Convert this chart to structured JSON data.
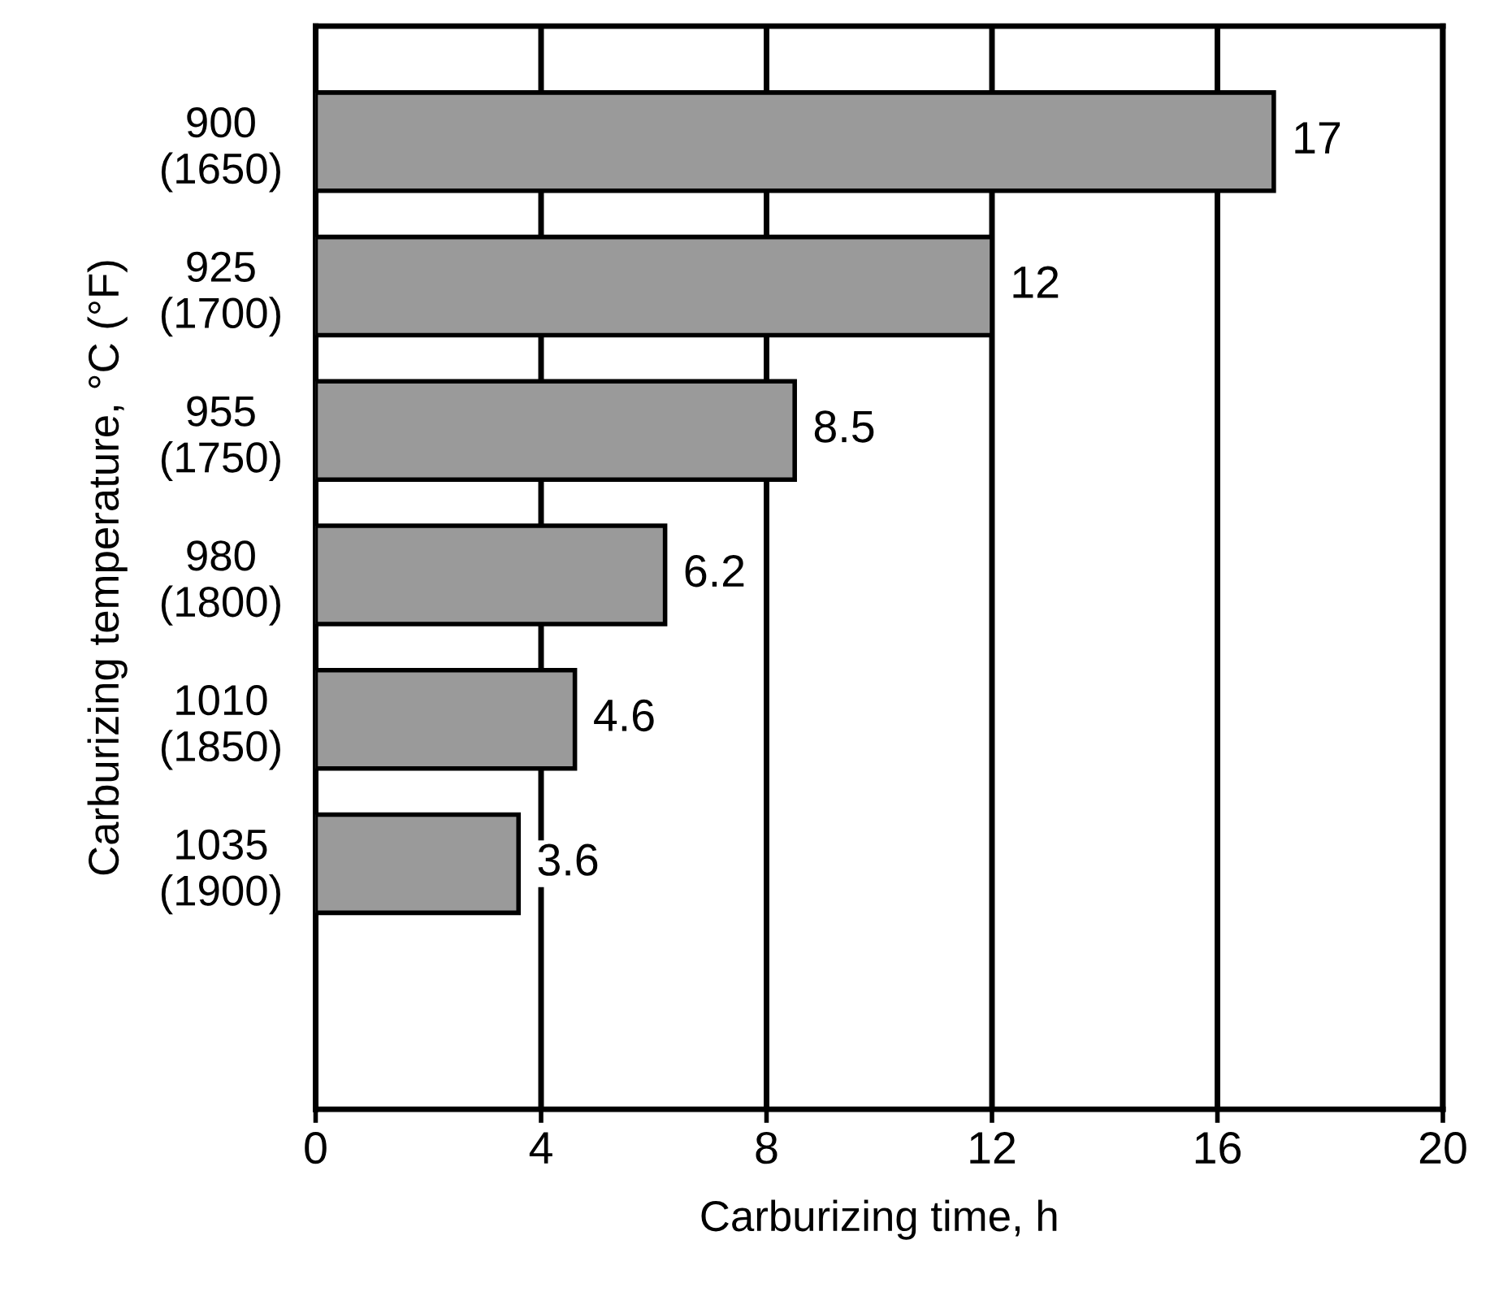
{
  "chart_data": {
    "type": "bar",
    "orientation": "horizontal",
    "xlabel": "Carburizing time, h",
    "ylabel": "Carburizing temperature, °C (°F)",
    "categories": [
      "900\n(1650)",
      "925\n(1700)",
      "955\n(1750)",
      "980\n(1800)",
      "1010\n(1850)",
      "1035\n(1900)"
    ],
    "values": [
      17,
      12,
      8.5,
      6.2,
      4.6,
      3.6
    ],
    "color": "#9a9a9a",
    "xlim": [
      0,
      20
    ],
    "xticks": [
      0,
      4,
      8,
      12,
      16,
      20
    ],
    "grid": "x",
    "data_labels": true
  }
}
